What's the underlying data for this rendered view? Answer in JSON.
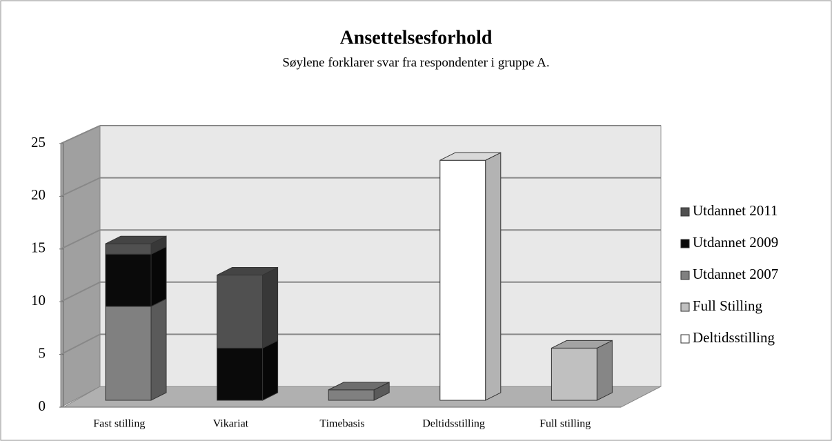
{
  "chart_data": {
    "type": "bar3d_stacked",
    "title": "Ansettelsesforhold",
    "subtitle": "Søylene  forklarer svar fra respondenter i gruppe A.",
    "categories": [
      "Fast stilling",
      "Vikariat",
      "Timebasis",
      "Deltidsstilling",
      "Full stilling"
    ],
    "series": [
      {
        "name": "Deltidsstilling",
        "color": "#ffffff",
        "values": [
          0,
          0,
          0,
          23,
          0
        ]
      },
      {
        "name": "Full Stilling",
        "color": "#c0c0c0",
        "values": [
          0,
          0,
          0,
          0,
          5
        ]
      },
      {
        "name": "Utdannet 2007",
        "color": "#808080",
        "values": [
          9,
          0,
          1,
          0,
          0
        ]
      },
      {
        "name": "Utdannet 2009",
        "color": "#0a0a0a",
        "values": [
          5,
          5,
          0,
          0,
          0
        ]
      },
      {
        "name": "Utdannet 2011",
        "color": "#505050",
        "values": [
          1,
          7,
          0,
          0,
          0
        ]
      }
    ],
    "ylim": [
      0,
      25
    ],
    "yticks": [
      0,
      5,
      10,
      15,
      20,
      25
    ],
    "grid": true,
    "legend": "right"
  }
}
